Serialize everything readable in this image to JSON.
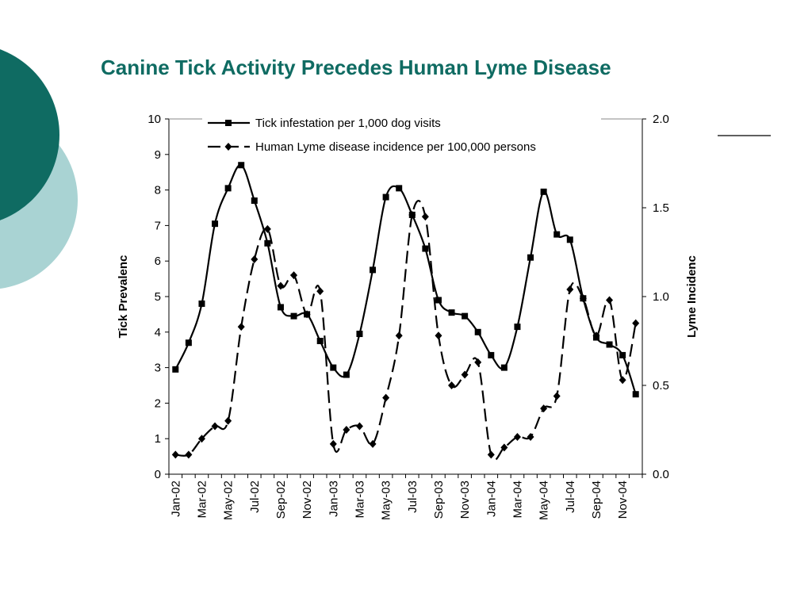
{
  "slide": {
    "title": "Canine Tick Activity Precedes Human Lyme Disease",
    "colors": {
      "title": "#0f6b62",
      "circle_dark": "#0f6b62",
      "circle_light": "#a9d3d3"
    }
  },
  "chart_data": {
    "type": "line",
    "title": "",
    "xlabel": "",
    "ylabel_left": "Tick Prevalenc",
    "ylabel_right": "Lyme Incidenc",
    "ylim_left": [
      0,
      10
    ],
    "ylim_right": [
      0,
      2.0
    ],
    "yticks_left": [
      "0",
      "1",
      "2",
      "3",
      "4",
      "5",
      "6",
      "7",
      "8",
      "9",
      "10"
    ],
    "yticks_right": [
      "0.0",
      "0.5",
      "1.0",
      "1.5",
      "2.0"
    ],
    "categories": [
      "Jan-02",
      "Feb-02",
      "Mar-02",
      "Apr-02",
      "May-02",
      "Jun-02",
      "Jul-02",
      "Aug-02",
      "Sep-02",
      "Oct-02",
      "Nov-02",
      "Dec-02",
      "Jan-03",
      "Feb-03",
      "Mar-03",
      "Apr-03",
      "May-03",
      "Jun-03",
      "Jul-03",
      "Aug-03",
      "Sep-03",
      "Oct-03",
      "Nov-03",
      "Dec-03",
      "Jan-04",
      "Feb-04",
      "Mar-04",
      "Apr-04",
      "May-04",
      "Jun-04",
      "Jul-04",
      "Aug-04",
      "Sep-04",
      "Oct-04",
      "Nov-04",
      "Dec-04"
    ],
    "tick_labels": [
      "Jan-02",
      "Mar-02",
      "May-02",
      "Jul-02",
      "Sep-02",
      "Nov-02",
      "Jan-03",
      "Mar-03",
      "May-03",
      "Jul-03",
      "Sep-03",
      "Nov-03",
      "Jan-04",
      "Mar-04",
      "May-04",
      "Jul-04",
      "Sep-04",
      "Nov-04"
    ],
    "grid": false,
    "legend_position": "top",
    "series": [
      {
        "name": "Tick infestation per 1,000 dog visits",
        "axis": "left",
        "marker": "square",
        "dash": "solid",
        "color": "#000000",
        "values": [
          2.95,
          3.7,
          4.8,
          7.05,
          8.05,
          8.7,
          7.7,
          6.5,
          4.7,
          4.45,
          4.5,
          3.75,
          3.0,
          2.8,
          3.95,
          5.75,
          7.8,
          8.05,
          7.3,
          6.35,
          4.9,
          4.55,
          4.45,
          4.0,
          3.35,
          3.0,
          4.15,
          6.1,
          7.95,
          6.75,
          6.6,
          4.95,
          3.85,
          3.65,
          3.35,
          2.25
        ]
      },
      {
        "name": "Human Lyme disease incidence per 100,000 persons",
        "axis": "right",
        "marker": "diamond",
        "dash": "dashed",
        "color": "#000000",
        "values": [
          0.11,
          0.11,
          0.2,
          0.27,
          0.3,
          0.83,
          1.21,
          1.38,
          1.06,
          1.12,
          0.9,
          1.03,
          0.17,
          0.25,
          0.27,
          0.17,
          0.43,
          0.78,
          1.46,
          1.45,
          0.78,
          0.5,
          0.56,
          0.63,
          0.11,
          0.15,
          0.21,
          0.21,
          0.37,
          0.44,
          1.04,
          0.99,
          0.78,
          0.98,
          0.53,
          0.85
        ]
      }
    ]
  }
}
